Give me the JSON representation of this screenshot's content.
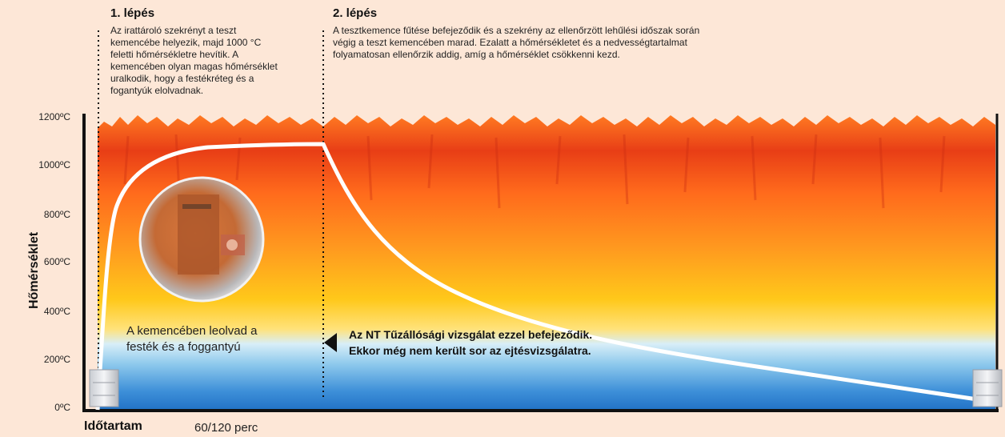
{
  "step1": {
    "title": "1. lépés",
    "lines": [
      "Az irattároló szekrényt a teszt",
      "kemencébe helyezik, majd 1000 °C",
      "feletti hőmérsékletre hevítik. A",
      "kemencében olyan magas hőmérséklet",
      "uralkodik, hogy a festékréteg és a",
      "fogantyúk elolvadnak."
    ]
  },
  "step2": {
    "title": "2. lépés",
    "lines": [
      "A tesztkemence fűtése befejeződik és a szekrény az ellenőrzött lehűlési időszak során",
      "végig a teszt kemencében marad. Ezalatt a hőmérsékletet és a nedvességtartalmat",
      "folyamatosan ellenőrzik addig, amíg a hőmérséklet csökkenni kezd."
    ]
  },
  "yaxis": {
    "label": "Hőmérséklet",
    "ticks": [
      "1200ºC",
      "1000ºC",
      "800ºC",
      "600ºC",
      "400ºC",
      "200ºC",
      "0ºC"
    ]
  },
  "xaxis": {
    "label": "Időtartam",
    "duration": "60/120 perc"
  },
  "inset_caption": [
    "A kemencében leolvad a",
    "festék és a foggantyú"
  ],
  "conclusion": [
    "Az NT Tűzállósági vizsgálat ezzel befejeződik.",
    "Ekkor még nem került sor az ejtésvizsgálatra."
  ],
  "colors": {
    "background": "#fde7d7",
    "flame": "#e8401a",
    "hot": "#ff6a00",
    "warm": "#ffc21a",
    "cool": "#2b7fd0",
    "curve": "#ffffff"
  }
}
